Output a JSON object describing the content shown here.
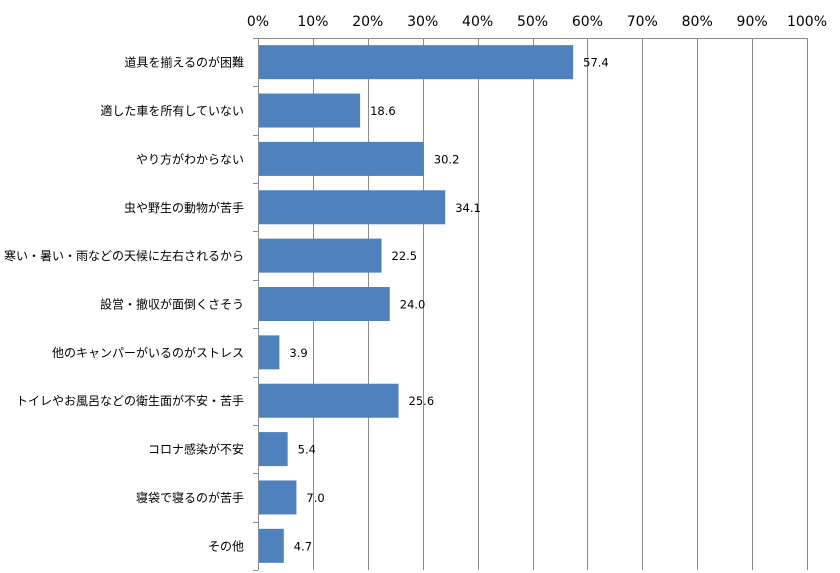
{
  "chart_data": {
    "type": "bar",
    "orientation": "horizontal",
    "categories": [
      "道具を揃えるのが困難",
      "適した車を所有していない",
      "やり方がわからない",
      "虫や野生の動物が苦手",
      "寒い・暑い・雨などの天候に左右されるから",
      "設営・撤収が面倒くさそう",
      "他のキャンパーがいるのがストレス",
      "トイレやお風呂などの衛生面が不安・苦手",
      "コロナ感染が不安",
      "寝袋で寝るのが苦手",
      "その他"
    ],
    "values": [
      57.4,
      18.6,
      30.2,
      34.1,
      22.5,
      24.0,
      3.9,
      25.6,
      5.4,
      7.0,
      4.7
    ],
    "value_labels": [
      "57.4",
      "18.6",
      "30.2",
      "34.1",
      "22.5",
      "24.0",
      "3.9",
      "25.6",
      "5.4",
      "7.0",
      "4.7"
    ],
    "xlim": [
      0,
      100
    ],
    "x_ticks": [
      0,
      10,
      20,
      30,
      40,
      50,
      60,
      70,
      80,
      90,
      100
    ],
    "x_tick_labels": [
      "0%",
      "10%",
      "20%",
      "30%",
      "40%",
      "50%",
      "60%",
      "70%",
      "80%",
      "90%",
      "100%"
    ],
    "x_axis_position": "top",
    "grid": true,
    "legend": "none",
    "title": "",
    "xlabel": "",
    "ylabel": "",
    "bar_color": "#4f81bd"
  }
}
